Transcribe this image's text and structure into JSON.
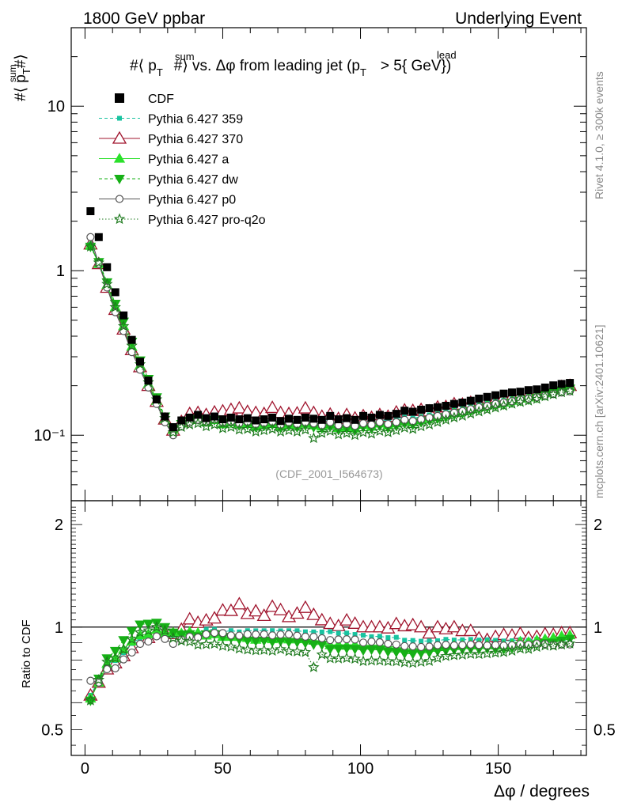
{
  "header": {
    "left": "1800 GeV ppbar",
    "right": "Underlying Event",
    "analysis_id": "(CDF_2001_I564673)",
    "side_top": "Rivet 4.1.0, ≥ 300k events",
    "side_bottom": "mcplots.cern.ch [arXiv:2401.10621]"
  },
  "colors": {
    "cdf": "#000000",
    "p359": "#19c3a0",
    "p370": "#a0142d",
    "pa": "#2be02b",
    "pdw": "#16b016",
    "pp0": "#555555",
    "pq2o": "#1e7a1e"
  },
  "chart_data": [
    {
      "type": "scatter",
      "title": "#⟨ p_T^sum #⟩ vs. Δφ from leading jet  (p_T^lead > 5{ GeV})",
      "title_parts": {
        "a": "#⟨ p",
        "sub_T": "T",
        "sup_sum": "sum",
        "b": "#⟩ vs. Δφ from leading jet  (p",
        "sup_lead": "lead",
        "c": "> 5{ GeV})"
      },
      "ylabel": "#⟨ p_T^sum #⟩",
      "ylabel_parts": {
        "a": "#⟨ p",
        "sub_T": "T",
        "sup_sum": "sum",
        "b": "#⟩"
      },
      "yscale": "log",
      "ylim": [
        0.04,
        30
      ],
      "xlim": [
        -5,
        182
      ],
      "yticks": [
        {
          "v": 10,
          "label": "10"
        },
        {
          "v": 1,
          "label": "1"
        },
        {
          "v": 0.1,
          "label": "10⁻¹"
        }
      ],
      "legend_position": "top-left",
      "x": [
        2,
        5,
        8,
        11,
        14,
        17,
        20,
        23,
        26,
        29,
        32,
        35,
        38,
        41,
        44,
        47,
        50,
        53,
        56,
        59,
        62,
        65,
        68,
        71,
        74,
        77,
        80,
        83,
        86,
        89,
        92,
        95,
        98,
        101,
        104,
        107,
        110,
        113,
        116,
        119,
        122,
        125,
        128,
        131,
        134,
        137,
        140,
        143,
        146,
        149,
        152,
        155,
        158,
        161,
        164,
        167,
        170,
        173,
        176
      ],
      "series": [
        {
          "name": "CDF",
          "key": "cdf",
          "values": [
            2.3,
            1.6,
            1.05,
            0.74,
            0.535,
            0.38,
            0.28,
            0.215,
            0.165,
            0.13,
            0.112,
            0.123,
            0.128,
            0.133,
            0.127,
            0.13,
            0.125,
            0.128,
            0.125,
            0.127,
            0.123,
            0.125,
            0.128,
            0.122,
            0.126,
            0.124,
            0.128,
            0.126,
            0.124,
            0.131,
            0.125,
            0.127,
            0.124,
            0.131,
            0.128,
            0.133,
            0.131,
            0.135,
            0.141,
            0.139,
            0.143,
            0.146,
            0.148,
            0.151,
            0.155,
            0.158,
            0.162,
            0.167,
            0.171,
            0.175,
            0.179,
            0.182,
            0.184,
            0.188,
            0.19,
            0.195,
            0.201,
            0.205,
            0.208
          ]
        },
        {
          "name": "Pythia 6.427 359",
          "key": "p359",
          "values": [
            1.45,
            1.12,
            0.82,
            0.59,
            0.45,
            0.34,
            0.26,
            0.2,
            0.155,
            0.122,
            0.106,
            0.117,
            0.123,
            0.128,
            0.125,
            0.128,
            0.121,
            0.125,
            0.121,
            0.124,
            0.12,
            0.122,
            0.125,
            0.119,
            0.123,
            0.121,
            0.124,
            0.122,
            0.12,
            0.127,
            0.12,
            0.122,
            0.118,
            0.124,
            0.12,
            0.125,
            0.122,
            0.126,
            0.129,
            0.127,
            0.13,
            0.133,
            0.135,
            0.139,
            0.142,
            0.145,
            0.149,
            0.153,
            0.157,
            0.16,
            0.163,
            0.166,
            0.169,
            0.172,
            0.175,
            0.179,
            0.183,
            0.187,
            0.19
          ]
        },
        {
          "name": "Pythia 6.427 370",
          "key": "p370",
          "values": [
            1.45,
            1.1,
            0.79,
            0.58,
            0.44,
            0.33,
            0.26,
            0.2,
            0.16,
            0.125,
            0.107,
            0.121,
            0.135,
            0.137,
            0.133,
            0.138,
            0.14,
            0.143,
            0.146,
            0.139,
            0.137,
            0.135,
            0.147,
            0.137,
            0.135,
            0.136,
            0.146,
            0.137,
            0.13,
            0.134,
            0.126,
            0.133,
            0.127,
            0.131,
            0.128,
            0.133,
            0.13,
            0.138,
            0.142,
            0.141,
            0.143,
            0.14,
            0.148,
            0.149,
            0.155,
            0.154,
            0.158,
            0.155,
            0.157,
            0.164,
            0.17,
            0.172,
            0.176,
            0.175,
            0.178,
            0.186,
            0.191,
            0.197,
            0.2
          ]
        },
        {
          "name": "Pythia 6.427 a",
          "key": "pa",
          "values": [
            1.42,
            1.1,
            0.82,
            0.6,
            0.46,
            0.345,
            0.265,
            0.205,
            0.162,
            0.125,
            0.108,
            0.118,
            0.124,
            0.128,
            0.12,
            0.124,
            0.117,
            0.12,
            0.117,
            0.118,
            0.113,
            0.116,
            0.118,
            0.113,
            0.116,
            0.115,
            0.118,
            0.115,
            0.113,
            0.116,
            0.111,
            0.112,
            0.11,
            0.116,
            0.113,
            0.118,
            0.115,
            0.118,
            0.122,
            0.12,
            0.124,
            0.127,
            0.13,
            0.133,
            0.137,
            0.14,
            0.144,
            0.148,
            0.152,
            0.155,
            0.158,
            0.162,
            0.167,
            0.17,
            0.174,
            0.18,
            0.187,
            0.193,
            0.197
          ]
        },
        {
          "name": "Pythia 6.427 dw",
          "key": "pdw",
          "values": [
            1.4,
            1.13,
            0.85,
            0.63,
            0.49,
            0.37,
            0.285,
            0.22,
            0.17,
            0.13,
            0.108,
            0.117,
            0.122,
            0.125,
            0.121,
            0.124,
            0.117,
            0.119,
            0.115,
            0.116,
            0.112,
            0.114,
            0.116,
            0.111,
            0.114,
            0.112,
            0.115,
            0.112,
            0.11,
            0.113,
            0.108,
            0.11,
            0.107,
            0.112,
            0.11,
            0.114,
            0.111,
            0.114,
            0.118,
            0.116,
            0.12,
            0.123,
            0.126,
            0.129,
            0.133,
            0.136,
            0.14,
            0.144,
            0.148,
            0.151,
            0.154,
            0.158,
            0.162,
            0.165,
            0.169,
            0.175,
            0.181,
            0.187,
            0.192
          ]
        },
        {
          "name": "Pythia 6.427 p0",
          "key": "pp0",
          "values": [
            1.6,
            1.1,
            0.79,
            0.56,
            0.43,
            0.32,
            0.25,
            0.195,
            0.155,
            0.12,
            0.1,
            0.113,
            0.12,
            0.124,
            0.121,
            0.125,
            0.12,
            0.121,
            0.118,
            0.121,
            0.117,
            0.119,
            0.121,
            0.116,
            0.12,
            0.117,
            0.12,
            0.118,
            0.115,
            0.12,
            0.115,
            0.117,
            0.114,
            0.118,
            0.116,
            0.12,
            0.117,
            0.12,
            0.124,
            0.122,
            0.125,
            0.128,
            0.131,
            0.134,
            0.137,
            0.14,
            0.144,
            0.148,
            0.151,
            0.155,
            0.158,
            0.161,
            0.164,
            0.167,
            0.17,
            0.174,
            0.178,
            0.182,
            0.185
          ]
        },
        {
          "name": "Pythia 6.427 pro-q2o",
          "key": "pq2o",
          "values": [
            1.4,
            1.12,
            0.83,
            0.6,
            0.46,
            0.35,
            0.27,
            0.21,
            0.165,
            0.127,
            0.104,
            0.112,
            0.116,
            0.118,
            0.113,
            0.116,
            0.11,
            0.112,
            0.108,
            0.109,
            0.105,
            0.107,
            0.109,
            0.105,
            0.107,
            0.105,
            0.108,
            0.096,
            0.103,
            0.106,
            0.101,
            0.103,
            0.1,
            0.104,
            0.102,
            0.106,
            0.104,
            0.107,
            0.111,
            0.109,
            0.113,
            0.116,
            0.12,
            0.124,
            0.128,
            0.131,
            0.135,
            0.139,
            0.143,
            0.147,
            0.151,
            0.155,
            0.159,
            0.162,
            0.166,
            0.172,
            0.177,
            0.182,
            0.186
          ]
        }
      ]
    },
    {
      "type": "scatter",
      "title": "",
      "xlabel": "Δφ / degrees",
      "ylabel": "Ratio to CDF",
      "yscale": "log",
      "ylim": [
        0.42,
        2.35
      ],
      "xlim": [
        -5,
        182
      ],
      "reference_line": 1,
      "xticks": [
        {
          "v": 0,
          "label": "0"
        },
        {
          "v": 50,
          "label": "50"
        },
        {
          "v": 100,
          "label": "100"
        },
        {
          "v": 150,
          "label": "150"
        }
      ],
      "yticks": [
        {
          "v": 2,
          "label": "2"
        },
        {
          "v": 1,
          "label": "1"
        },
        {
          "v": 0.5,
          "label": "0.5"
        }
      ],
      "series_ref": "ratio of each Pythia series in chart 1 to CDF, computed per x"
    }
  ]
}
